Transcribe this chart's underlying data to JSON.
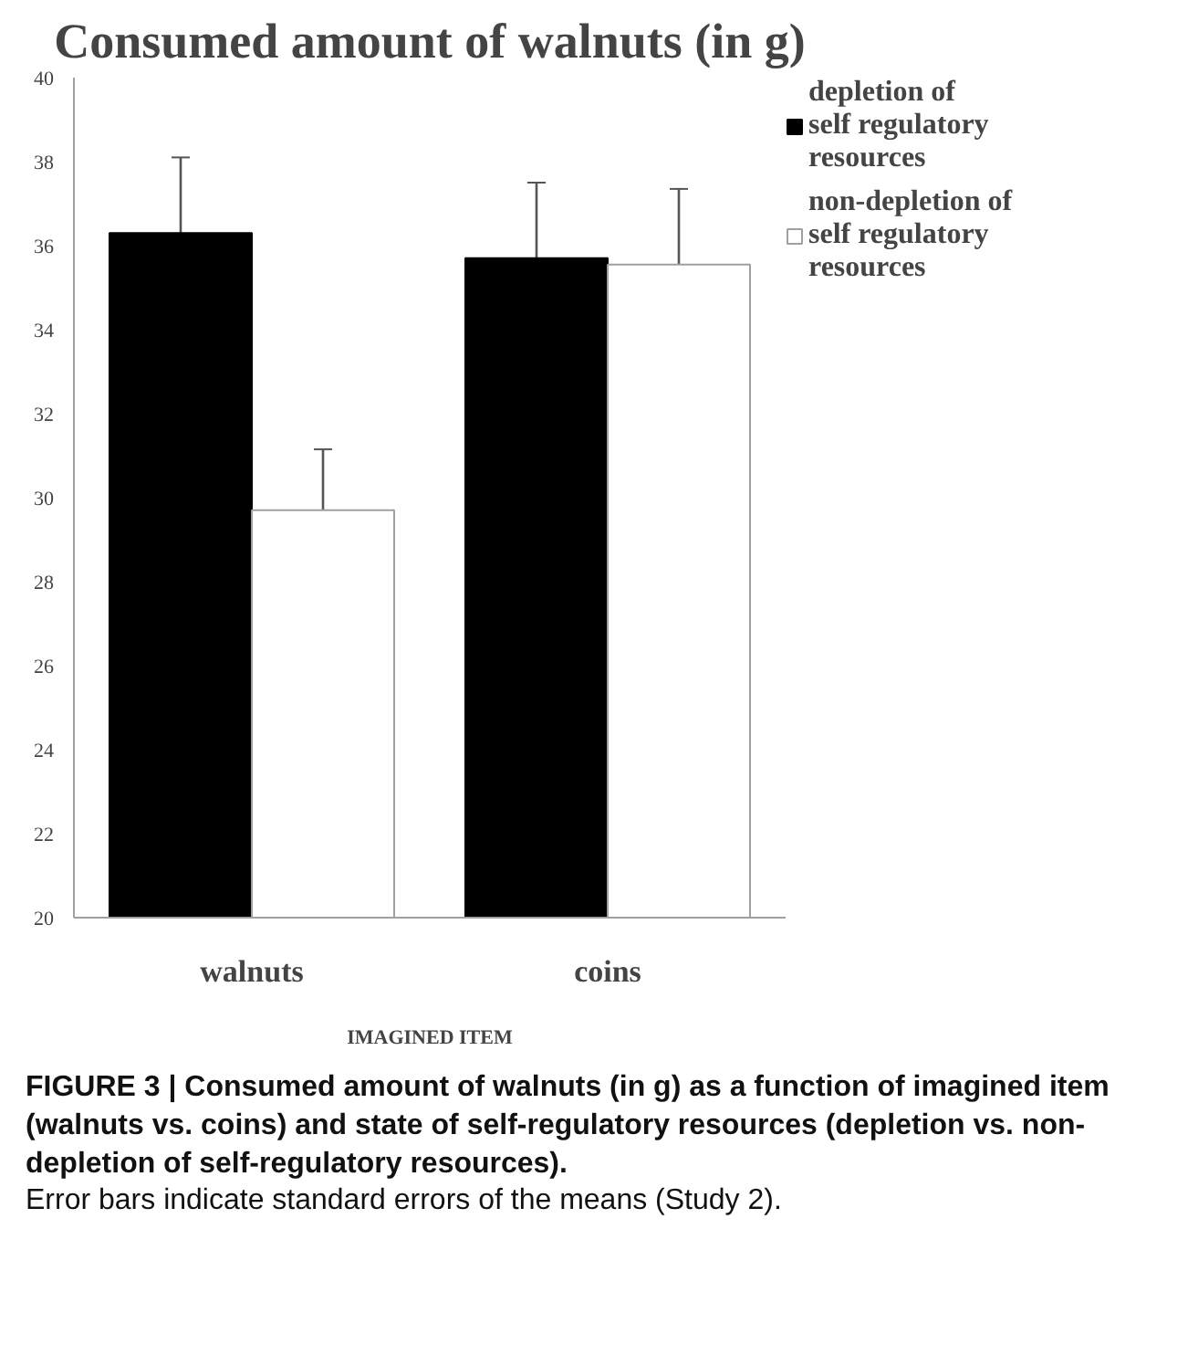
{
  "chart_data": {
    "type": "bar",
    "title": "Consumed amount of walnuts (in g)",
    "xlabel": "IMAGINED ITEM",
    "categories": [
      "walnuts",
      "coins"
    ],
    "series": [
      {
        "name": "depletion of self regulatory resources",
        "color": "#000000",
        "values": [
          36.3,
          35.7
        ],
        "errors": [
          1.8,
          1.8
        ]
      },
      {
        "name": "non-depletion of self regulatory resources",
        "color": "#ffffff",
        "values": [
          29.7,
          35.55
        ],
        "errors": [
          1.45,
          1.8
        ]
      }
    ],
    "ylim": [
      20,
      40
    ],
    "yticks": [
      20,
      22,
      24,
      26,
      28,
      30,
      32,
      34,
      36,
      38,
      40
    ],
    "grid": false,
    "legend": "right",
    "annotations": [
      "FIGURE 3 | Consumed amount of walnuts (in g) as a function of imagined item (walnuts vs. coins) and state of self-regulatory resources (depletion vs. non-depletion of self-regulatory resources).",
      "Error bars indicate standard errors of the means (Study 2)."
    ]
  }
}
